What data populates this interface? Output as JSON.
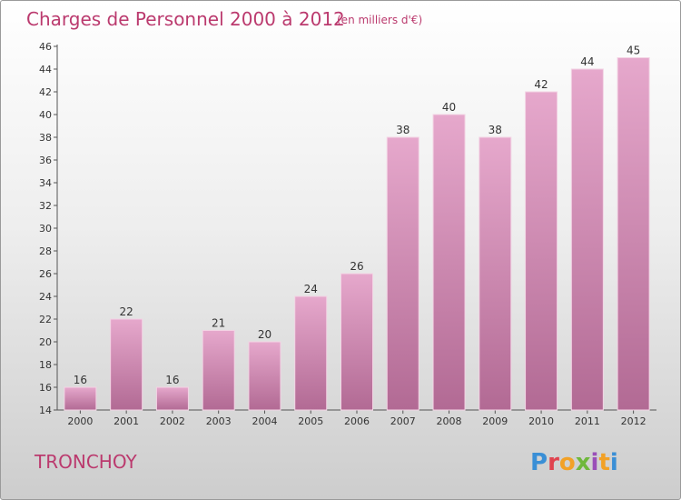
{
  "chart_data": {
    "type": "bar",
    "title": "Charges de Personnel 2000 à 2012",
    "subtitle": "(en milliers d'€)",
    "categories": [
      "2000",
      "2001",
      "2002",
      "2003",
      "2004",
      "2005",
      "2006",
      "2007",
      "2008",
      "2009",
      "2010",
      "2011",
      "2012"
    ],
    "values": [
      16,
      22,
      16,
      21,
      20,
      24,
      26,
      38,
      40,
      38,
      42,
      44,
      45
    ],
    "ylim": [
      14,
      46
    ],
    "ytick_step": 2,
    "grid": false,
    "colors": {
      "bar_top": "#e6a8cc",
      "bar_bottom": "#b26a94",
      "title": "#bb3a6e"
    }
  },
  "footer": {
    "commune": "TRONCHOY",
    "logo": "Proxiti"
  },
  "logo_colors": [
    "#3a8fd6",
    "#e0434f",
    "#f2a127",
    "#6fb83b",
    "#9a4fb8",
    "#f2a127",
    "#3a8fd6"
  ]
}
